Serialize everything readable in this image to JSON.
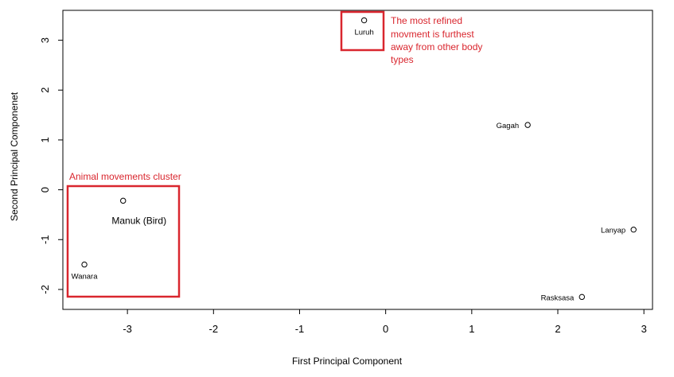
{
  "chart_data": {
    "type": "scatter",
    "xlabel": "First Principal Component",
    "ylabel": "Second Principal Componenet",
    "xlim": [
      -3.75,
      3.1
    ],
    "ylim": [
      -2.4,
      3.6
    ],
    "xticks": [
      -3,
      -2,
      -1,
      0,
      1,
      2,
      3
    ],
    "yticks": [
      -2,
      -1,
      0,
      1,
      2,
      3
    ],
    "grid": false,
    "points": [
      {
        "label": "Luruh",
        "x": -0.25,
        "y": 3.4
      },
      {
        "label": "Gagah",
        "x": 1.65,
        "y": 1.3
      },
      {
        "label": "Manuk (Bird)",
        "x": -3.05,
        "y": -0.22
      },
      {
        "label": "Wanara",
        "x": -3.5,
        "y": -1.5
      },
      {
        "label": "Lanyap",
        "x": 2.88,
        "y": -0.8
      },
      {
        "label": "Rasksasa",
        "x": 2.28,
        "y": -2.15
      }
    ],
    "annotations": [
      {
        "text_lines": [
          "The most refined",
          "movment is furthest",
          "away from other body",
          "types"
        ],
        "color": "#d9262e"
      },
      {
        "text": "Animal movements cluster",
        "color": "#d9262e"
      }
    ]
  }
}
